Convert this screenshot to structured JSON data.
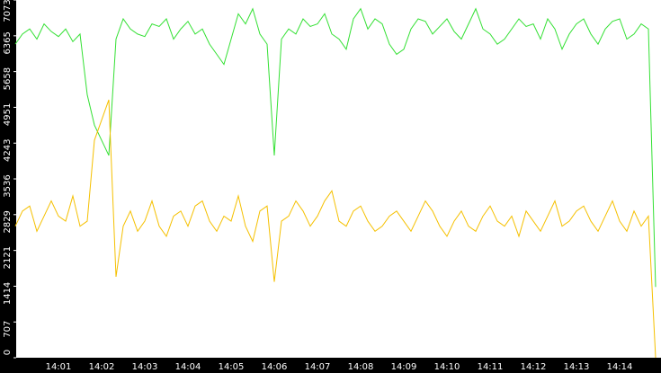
{
  "chart_data": {
    "type": "line",
    "categories": [
      null,
      null,
      null,
      null,
      null,
      null,
      "14:01",
      null,
      null,
      null,
      null,
      null,
      "14:02",
      null,
      null,
      null,
      null,
      null,
      "14:03",
      null,
      null,
      null,
      null,
      null,
      "14:04",
      null,
      null,
      null,
      null,
      null,
      "14:05",
      null,
      null,
      null,
      null,
      null,
      "14:06",
      null,
      null,
      null,
      null,
      null,
      "14:07",
      null,
      null,
      null,
      null,
      null,
      "14:08",
      null,
      null,
      null,
      null,
      null,
      "14:09",
      null,
      null,
      null,
      null,
      null,
      "14:10",
      null,
      null,
      null,
      null,
      null,
      "14:11",
      null,
      null,
      null,
      null,
      null,
      "14:12",
      null,
      null,
      null,
      null,
      null,
      "14:13",
      null,
      null,
      null,
      null,
      null,
      "14:14",
      null,
      null,
      null,
      null,
      null
    ],
    "series": [
      {
        "color": "#33e033",
        "values": [
          6200,
          6400,
          6500,
          6300,
          6600,
          6450,
          6350,
          6500,
          6250,
          6400,
          5200,
          4600,
          4300,
          4000,
          6300,
          6700,
          6500,
          6400,
          6350,
          6600,
          6550,
          6700,
          6300,
          6500,
          6650,
          6400,
          6500,
          6200,
          6000,
          5800,
          6300,
          6800,
          6600,
          6900,
          6400,
          6200,
          4000,
          6300,
          6500,
          6400,
          6700,
          6550,
          6600,
          6800,
          6400,
          6300,
          6100,
          6700,
          6900,
          6500,
          6700,
          6600,
          6200,
          6000,
          6100,
          6500,
          6700,
          6650,
          6400,
          6550,
          6700,
          6450,
          6300,
          6600,
          6900,
          6500,
          6400,
          6200,
          6300,
          6500,
          6700,
          6550,
          6600,
          6300,
          6700,
          6500,
          6100,
          6400,
          6600,
          6700,
          6400,
          6200,
          6500,
          6650,
          6700,
          6300,
          6400,
          6600,
          6500,
          1400
        ]
      },
      {
        "color": "#f5c000",
        "values": [
          2600,
          2900,
          3000,
          2500,
          2800,
          3100,
          2800,
          2700,
          3200,
          2600,
          2700,
          4300,
          4700,
          5100,
          1600,
          2600,
          2900,
          2500,
          2700,
          3100,
          2600,
          2400,
          2800,
          2900,
          2600,
          3000,
          3100,
          2700,
          2500,
          2800,
          2700,
          3200,
          2600,
          2300,
          2900,
          3000,
          1500,
          2700,
          2800,
          3100,
          2900,
          2600,
          2800,
          3100,
          3300,
          2700,
          2600,
          2900,
          3000,
          2700,
          2500,
          2600,
          2800,
          2900,
          2700,
          2500,
          2800,
          3100,
          2900,
          2600,
          2400,
          2700,
          2900,
          2600,
          2500,
          2800,
          3000,
          2700,
          2600,
          2800,
          2400,
          2900,
          2700,
          2500,
          2800,
          3100,
          2600,
          2700,
          2900,
          3000,
          2700,
          2500,
          2800,
          3100,
          2700,
          2500,
          2900,
          2600,
          2800,
          0
        ]
      }
    ],
    "ylim": [
      0,
      7073
    ],
    "yticks": [
      0,
      707,
      1414,
      2121,
      2829,
      3536,
      4243,
      4951,
      5658,
      6365,
      7073
    ]
  }
}
